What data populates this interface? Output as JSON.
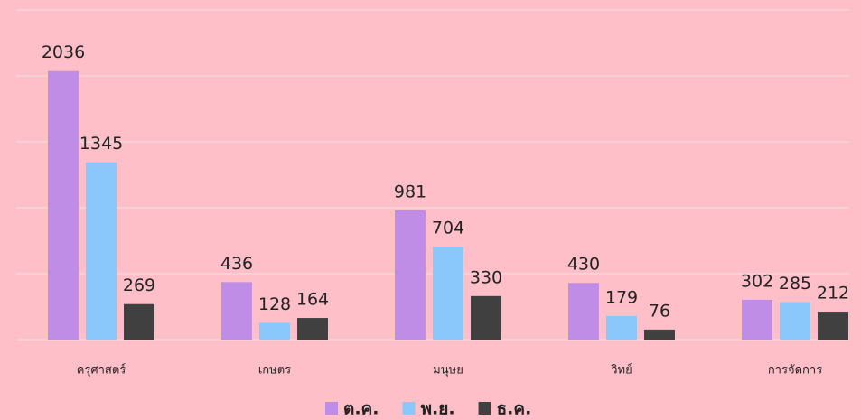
{
  "chart_data": {
    "type": "bar",
    "categories": [
      "ครุศาสตร์",
      "เกษตร",
      "มนุษย",
      "วิทย์",
      "การจัดการ"
    ],
    "series": [
      {
        "name": "ต.ค.",
        "color": "#bf8de5",
        "values": [
          2036,
          436,
          981,
          430,
          302
        ]
      },
      {
        "name": "พ.ย.",
        "color": "#8ac8fb",
        "values": [
          1345,
          128,
          704,
          179,
          285
        ]
      },
      {
        "name": "ธ.ค.",
        "color": "#404040",
        "values": [
          269,
          164,
          330,
          76,
          212
        ]
      }
    ],
    "ylim": [
      0,
      2500
    ],
    "yticks": [
      0,
      500,
      1000,
      1500,
      2000,
      2500
    ],
    "grid": true,
    "legend": "bottom"
  }
}
